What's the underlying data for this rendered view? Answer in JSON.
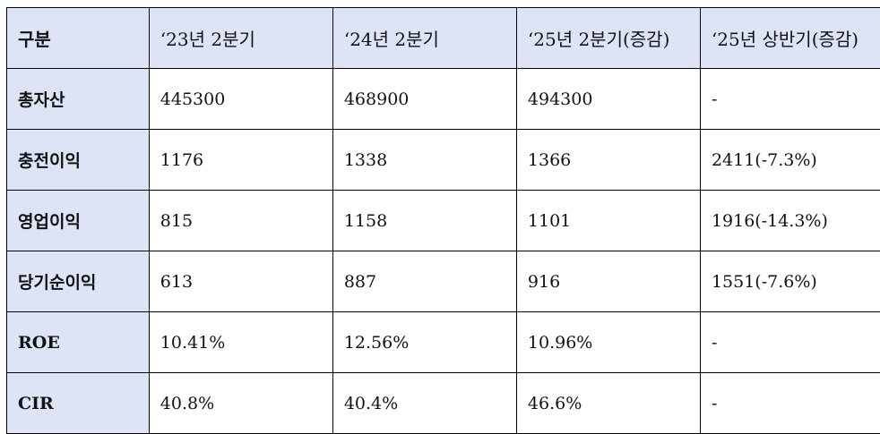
{
  "table": {
    "headers": [
      "구분",
      "‘23년 2분기",
      "‘24년 2분기",
      "‘25년 2분기(증감)",
      "‘25년 상반기(증감)"
    ],
    "rows": [
      [
        "총자산",
        "445300",
        "468900",
        "494300",
        "-"
      ],
      [
        "충전이익",
        "1176",
        "1338",
        "1366",
        "2411(-7.3%)"
      ],
      [
        "영업이익",
        "815",
        "1158",
        "1101",
        "1916(-14.3%)"
      ],
      [
        "당기순이익",
        "613",
        "887",
        "916",
        "1551(-7.6%)"
      ],
      [
        "ROE",
        "10.41%",
        "12.56%",
        "10.96%",
        "-"
      ],
      [
        "CIR",
        "40.8%",
        "40.4%",
        "46.6%",
        "-"
      ]
    ]
  },
  "colors": {
    "header_bg": "#dde4f5",
    "border": "#000000"
  }
}
